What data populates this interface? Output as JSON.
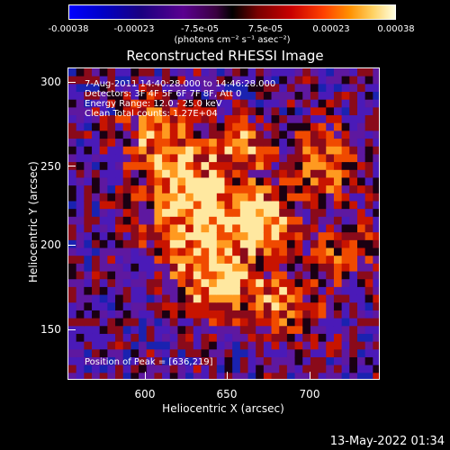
{
  "colorbar": {
    "ticks": [
      "-0.00038",
      "-0.00023",
      "-7.5e-05",
      "7.5e-05",
      "0.00023",
      "0.00038"
    ],
    "units_line": "(photons cm⁻² s⁻¹ asec⁻²)"
  },
  "title": "Reconstructed RHESSI Image",
  "info": {
    "line1": "7-Aug-2011 14:40:28.000 to 14:46:28.000",
    "line2": "Detectors: 3F 4F 5F 6F 7F 8F, Att 0",
    "line3": "Energy Range: 12.0 - 25.0 keV",
    "line4": "Clean     Total counts: 1.27E+04",
    "peak": "Position of Peak = [636,219]"
  },
  "axes": {
    "xlabel": "Heliocentric X (arcsec)",
    "ylabel": "Heliocentric Y (arcsec)",
    "xticks": [
      "600",
      "650",
      "700"
    ],
    "yticks": [
      "300",
      "250",
      "200",
      "150"
    ]
  },
  "footer_date": "13-May-2022 01:34"
}
